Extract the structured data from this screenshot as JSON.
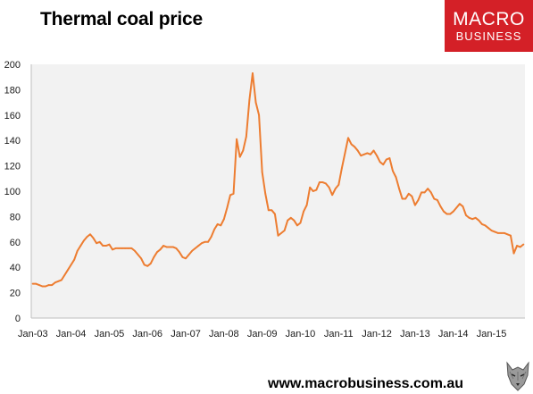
{
  "title": "Thermal coal price",
  "logo": {
    "line1": "MACRO",
    "line2": "BUSINESS",
    "color": "#d42027"
  },
  "footer": "www.macrobusiness.com.au",
  "colors": {
    "line": "#ed7d31",
    "plot_bg": "#f2f2f2"
  },
  "chart_data": {
    "type": "line",
    "title": "Thermal coal price",
    "xlabel": "",
    "ylabel": "",
    "ylim": [
      0,
      200
    ],
    "yticks": [
      0,
      20,
      40,
      60,
      80,
      100,
      120,
      140,
      160,
      180,
      200
    ],
    "xticks": [
      "Jan-03",
      "Jan-04",
      "Jan-05",
      "Jan-06",
      "Jan-07",
      "Jan-08",
      "Jan-09",
      "Jan-10",
      "Jan-11",
      "Jan-12",
      "Jan-13",
      "Jan-14",
      "Jan-15"
    ],
    "grid": false,
    "legend": "none",
    "start": "Jan-03",
    "frequency": "monthly",
    "series": [
      {
        "values": [
          27,
          27,
          26,
          25,
          25,
          26,
          26,
          28,
          29,
          30,
          34,
          38,
          42,
          46,
          53,
          57,
          61,
          64,
          66,
          63,
          59,
          60,
          57,
          57,
          58,
          54,
          55,
          55,
          55,
          55,
          55,
          55,
          53,
          50,
          47,
          42,
          41,
          43,
          48,
          52,
          54,
          57,
          56,
          56,
          56,
          55,
          52,
          48,
          47,
          50,
          53,
          55,
          57,
          59,
          60,
          60,
          64,
          70,
          74,
          73,
          78,
          87,
          97,
          98,
          141,
          127,
          132,
          143,
          172,
          193,
          170,
          160,
          115,
          98,
          85,
          85,
          82,
          65,
          67,
          69,
          77,
          79,
          77,
          73,
          75,
          84,
          89,
          103,
          100,
          101,
          107,
          107,
          106,
          103,
          97,
          102,
          105,
          118,
          130,
          142,
          137,
          135,
          132,
          128,
          129,
          130,
          129,
          132,
          128,
          123,
          121,
          125,
          126,
          116,
          111,
          102,
          94,
          94,
          98,
          96,
          89,
          93,
          99,
          99,
          102,
          99,
          94,
          93,
          88,
          84,
          82,
          82,
          84,
          87,
          90,
          88,
          81,
          79,
          78,
          79,
          77,
          74,
          73,
          71,
          69,
          68,
          67,
          67,
          67,
          66,
          65,
          51,
          57,
          56,
          58
        ]
      }
    ]
  }
}
